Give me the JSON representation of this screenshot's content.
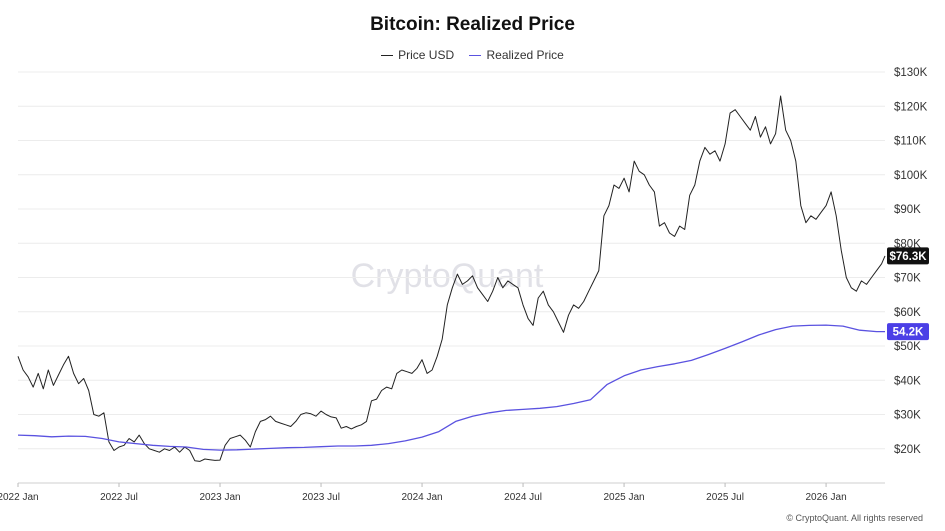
{
  "chart_data": {
    "type": "line",
    "title": "Bitcoin: Realized Price",
    "watermark": "CryptoQuant",
    "footer": "© CryptoQuant. All rights reserved",
    "xlabel": "",
    "ylabel": "",
    "ylim": [
      10000,
      130000
    ],
    "x_range_months": [
      0,
      51.5
    ],
    "yticks": [
      {
        "v": 130000,
        "label": "$130K"
      },
      {
        "v": 120000,
        "label": "$120K"
      },
      {
        "v": 110000,
        "label": "$110K"
      },
      {
        "v": 100000,
        "label": "$100K"
      },
      {
        "v": 90000,
        "label": "$90K"
      },
      {
        "v": 80000,
        "label": "$80K"
      },
      {
        "v": 70000,
        "label": "$70K"
      },
      {
        "v": 60000,
        "label": "$60K"
      },
      {
        "v": 50000,
        "label": "$50K"
      },
      {
        "v": 40000,
        "label": "$40K"
      },
      {
        "v": 30000,
        "label": "$30K"
      },
      {
        "v": 20000,
        "label": "$20K"
      }
    ],
    "xticks": [
      {
        "m": 0,
        "label": "2022 Jan"
      },
      {
        "m": 6,
        "label": "2022 Jul"
      },
      {
        "m": 12,
        "label": "2023 Jan"
      },
      {
        "m": 18,
        "label": "2023 Jul"
      },
      {
        "m": 24,
        "label": "2024 Jan"
      },
      {
        "m": 30,
        "label": "2024 Jul"
      },
      {
        "m": 36,
        "label": "2025 Jan"
      },
      {
        "m": 42,
        "label": "2025 Jul"
      },
      {
        "m": 48,
        "label": "2026 Jan"
      }
    ],
    "series": [
      {
        "name": "Price USD",
        "color": "#222222",
        "badge": "$76.3K",
        "badge_color": "#111111",
        "points": [
          [
            0.0,
            47000
          ],
          [
            0.3,
            43000
          ],
          [
            0.6,
            41000
          ],
          [
            0.9,
            38000
          ],
          [
            1.2,
            42000
          ],
          [
            1.5,
            37500
          ],
          [
            1.8,
            43000
          ],
          [
            2.1,
            38500
          ],
          [
            2.4,
            41500
          ],
          [
            2.7,
            44500
          ],
          [
            3.0,
            47000
          ],
          [
            3.3,
            42000
          ],
          [
            3.6,
            39000
          ],
          [
            3.9,
            40500
          ],
          [
            4.2,
            37000
          ],
          [
            4.5,
            30000
          ],
          [
            4.8,
            29500
          ],
          [
            5.1,
            30500
          ],
          [
            5.4,
            22000
          ],
          [
            5.7,
            19500
          ],
          [
            6.0,
            20500
          ],
          [
            6.3,
            21000
          ],
          [
            6.6,
            23000
          ],
          [
            6.9,
            22000
          ],
          [
            7.2,
            24000
          ],
          [
            7.5,
            21500
          ],
          [
            7.8,
            20000
          ],
          [
            8.1,
            19500
          ],
          [
            8.4,
            19000
          ],
          [
            8.7,
            20000
          ],
          [
            9.0,
            19500
          ],
          [
            9.3,
            20500
          ],
          [
            9.6,
            19000
          ],
          [
            9.9,
            20500
          ],
          [
            10.2,
            19500
          ],
          [
            10.5,
            16500
          ],
          [
            10.8,
            16300
          ],
          [
            11.1,
            17000
          ],
          [
            11.4,
            16800
          ],
          [
            11.7,
            16600
          ],
          [
            12.0,
            16700
          ],
          [
            12.3,
            21000
          ],
          [
            12.6,
            23000
          ],
          [
            12.9,
            23500
          ],
          [
            13.2,
            24000
          ],
          [
            13.5,
            22500
          ],
          [
            13.8,
            20500
          ],
          [
            14.1,
            25000
          ],
          [
            14.4,
            28000
          ],
          [
            14.7,
            28500
          ],
          [
            15.0,
            29500
          ],
          [
            15.3,
            28000
          ],
          [
            15.6,
            27500
          ],
          [
            15.9,
            27000
          ],
          [
            16.2,
            26500
          ],
          [
            16.5,
            28000
          ],
          [
            16.8,
            30000
          ],
          [
            17.1,
            30500
          ],
          [
            17.4,
            30200
          ],
          [
            17.7,
            29500
          ],
          [
            18.0,
            31000
          ],
          [
            18.3,
            30000
          ],
          [
            18.6,
            29300
          ],
          [
            18.9,
            29000
          ],
          [
            19.2,
            26000
          ],
          [
            19.5,
            26500
          ],
          [
            19.8,
            25800
          ],
          [
            20.1,
            26500
          ],
          [
            20.4,
            27000
          ],
          [
            20.7,
            28000
          ],
          [
            21.0,
            34000
          ],
          [
            21.3,
            34500
          ],
          [
            21.6,
            37000
          ],
          [
            21.9,
            38000
          ],
          [
            22.2,
            37500
          ],
          [
            22.5,
            42000
          ],
          [
            22.8,
            43000
          ],
          [
            23.1,
            42500
          ],
          [
            23.4,
            42000
          ],
          [
            23.7,
            43500
          ],
          [
            24.0,
            46000
          ],
          [
            24.3,
            42000
          ],
          [
            24.6,
            43000
          ],
          [
            24.9,
            47000
          ],
          [
            25.2,
            52000
          ],
          [
            25.5,
            62000
          ],
          [
            25.8,
            67000
          ],
          [
            26.1,
            71000
          ],
          [
            26.4,
            68000
          ],
          [
            26.7,
            69000
          ],
          [
            27.0,
            70500
          ],
          [
            27.3,
            67000
          ],
          [
            27.6,
            65000
          ],
          [
            27.9,
            63000
          ],
          [
            28.2,
            66000
          ],
          [
            28.5,
            70000
          ],
          [
            28.8,
            67000
          ],
          [
            29.1,
            69000
          ],
          [
            29.4,
            68000
          ],
          [
            29.7,
            67000
          ],
          [
            30.0,
            62000
          ],
          [
            30.3,
            58000
          ],
          [
            30.6,
            56000
          ],
          [
            30.9,
            64000
          ],
          [
            31.2,
            66000
          ],
          [
            31.5,
            62000
          ],
          [
            31.8,
            60000
          ],
          [
            32.1,
            57000
          ],
          [
            32.4,
            54000
          ],
          [
            32.7,
            59000
          ],
          [
            33.0,
            62000
          ],
          [
            33.3,
            61000
          ],
          [
            33.6,
            63000
          ],
          [
            33.9,
            66000
          ],
          [
            34.2,
            69000
          ],
          [
            34.5,
            72000
          ],
          [
            34.8,
            88000
          ],
          [
            35.1,
            91000
          ],
          [
            35.4,
            97000
          ],
          [
            35.7,
            96000
          ],
          [
            36.0,
            99000
          ],
          [
            36.3,
            95000
          ],
          [
            36.6,
            104000
          ],
          [
            36.9,
            101000
          ],
          [
            37.2,
            100000
          ],
          [
            37.5,
            97000
          ],
          [
            37.8,
            95000
          ],
          [
            38.1,
            85000
          ],
          [
            38.4,
            86000
          ],
          [
            38.7,
            83000
          ],
          [
            39.0,
            82000
          ],
          [
            39.3,
            85000
          ],
          [
            39.6,
            84000
          ],
          [
            39.9,
            94000
          ],
          [
            40.2,
            97000
          ],
          [
            40.5,
            104000
          ],
          [
            40.8,
            108000
          ],
          [
            41.1,
            106000
          ],
          [
            41.4,
            107000
          ],
          [
            41.7,
            104000
          ],
          [
            42.0,
            109000
          ],
          [
            42.3,
            118000
          ],
          [
            42.6,
            119000
          ],
          [
            42.9,
            117000
          ],
          [
            43.2,
            115000
          ],
          [
            43.5,
            113000
          ],
          [
            43.8,
            117000
          ],
          [
            44.1,
            111000
          ],
          [
            44.4,
            114000
          ],
          [
            44.7,
            109000
          ],
          [
            45.0,
            112000
          ],
          [
            45.3,
            123000
          ],
          [
            45.6,
            113000
          ],
          [
            45.9,
            110000
          ],
          [
            46.2,
            104000
          ],
          [
            46.5,
            91000
          ],
          [
            46.8,
            86000
          ],
          [
            47.1,
            88000
          ],
          [
            47.4,
            87000
          ],
          [
            47.7,
            89000
          ],
          [
            48.0,
            91000
          ],
          [
            48.3,
            95000
          ],
          [
            48.6,
            88000
          ],
          [
            48.9,
            78000
          ],
          [
            49.2,
            70000
          ],
          [
            49.5,
            67000
          ],
          [
            49.8,
            66000
          ],
          [
            50.1,
            69000
          ],
          [
            50.4,
            68000
          ],
          [
            50.7,
            70000
          ],
          [
            51.0,
            72000
          ],
          [
            51.3,
            74000
          ],
          [
            51.5,
            76300
          ]
        ]
      },
      {
        "name": "Realized Price",
        "color": "#5a52e0",
        "badge": "54.2K",
        "badge_color": "#4b3fe6",
        "points": [
          [
            0,
            24000
          ],
          [
            1,
            23800
          ],
          [
            2,
            23500
          ],
          [
            3,
            23700
          ],
          [
            4,
            23600
          ],
          [
            5,
            23000
          ],
          [
            6,
            22000
          ],
          [
            7,
            21500
          ],
          [
            8,
            21000
          ],
          [
            9,
            20700
          ],
          [
            10,
            20500
          ],
          [
            11,
            19800
          ],
          [
            12,
            19600
          ],
          [
            13,
            19700
          ],
          [
            14,
            19900
          ],
          [
            15,
            20100
          ],
          [
            16,
            20300
          ],
          [
            17,
            20400
          ],
          [
            18,
            20600
          ],
          [
            19,
            20800
          ],
          [
            20,
            20800
          ],
          [
            21,
            21000
          ],
          [
            22,
            21500
          ],
          [
            23,
            22300
          ],
          [
            24,
            23400
          ],
          [
            25,
            25000
          ],
          [
            26,
            28000
          ],
          [
            27,
            29500
          ],
          [
            28,
            30500
          ],
          [
            29,
            31200
          ],
          [
            30,
            31500
          ],
          [
            31,
            31800
          ],
          [
            32,
            32300
          ],
          [
            33,
            33200
          ],
          [
            34,
            34300
          ],
          [
            35,
            38800
          ],
          [
            36,
            41300
          ],
          [
            37,
            43000
          ],
          [
            38,
            44000
          ],
          [
            39,
            44800
          ],
          [
            40,
            45800
          ],
          [
            41,
            47500
          ],
          [
            42,
            49300
          ],
          [
            43,
            51200
          ],
          [
            44,
            53200
          ],
          [
            45,
            54800
          ],
          [
            46,
            55800
          ],
          [
            47,
            56000
          ],
          [
            48,
            56100
          ],
          [
            49,
            55800
          ],
          [
            50,
            54600
          ],
          [
            51,
            54200
          ],
          [
            51.5,
            54200
          ]
        ]
      }
    ]
  }
}
